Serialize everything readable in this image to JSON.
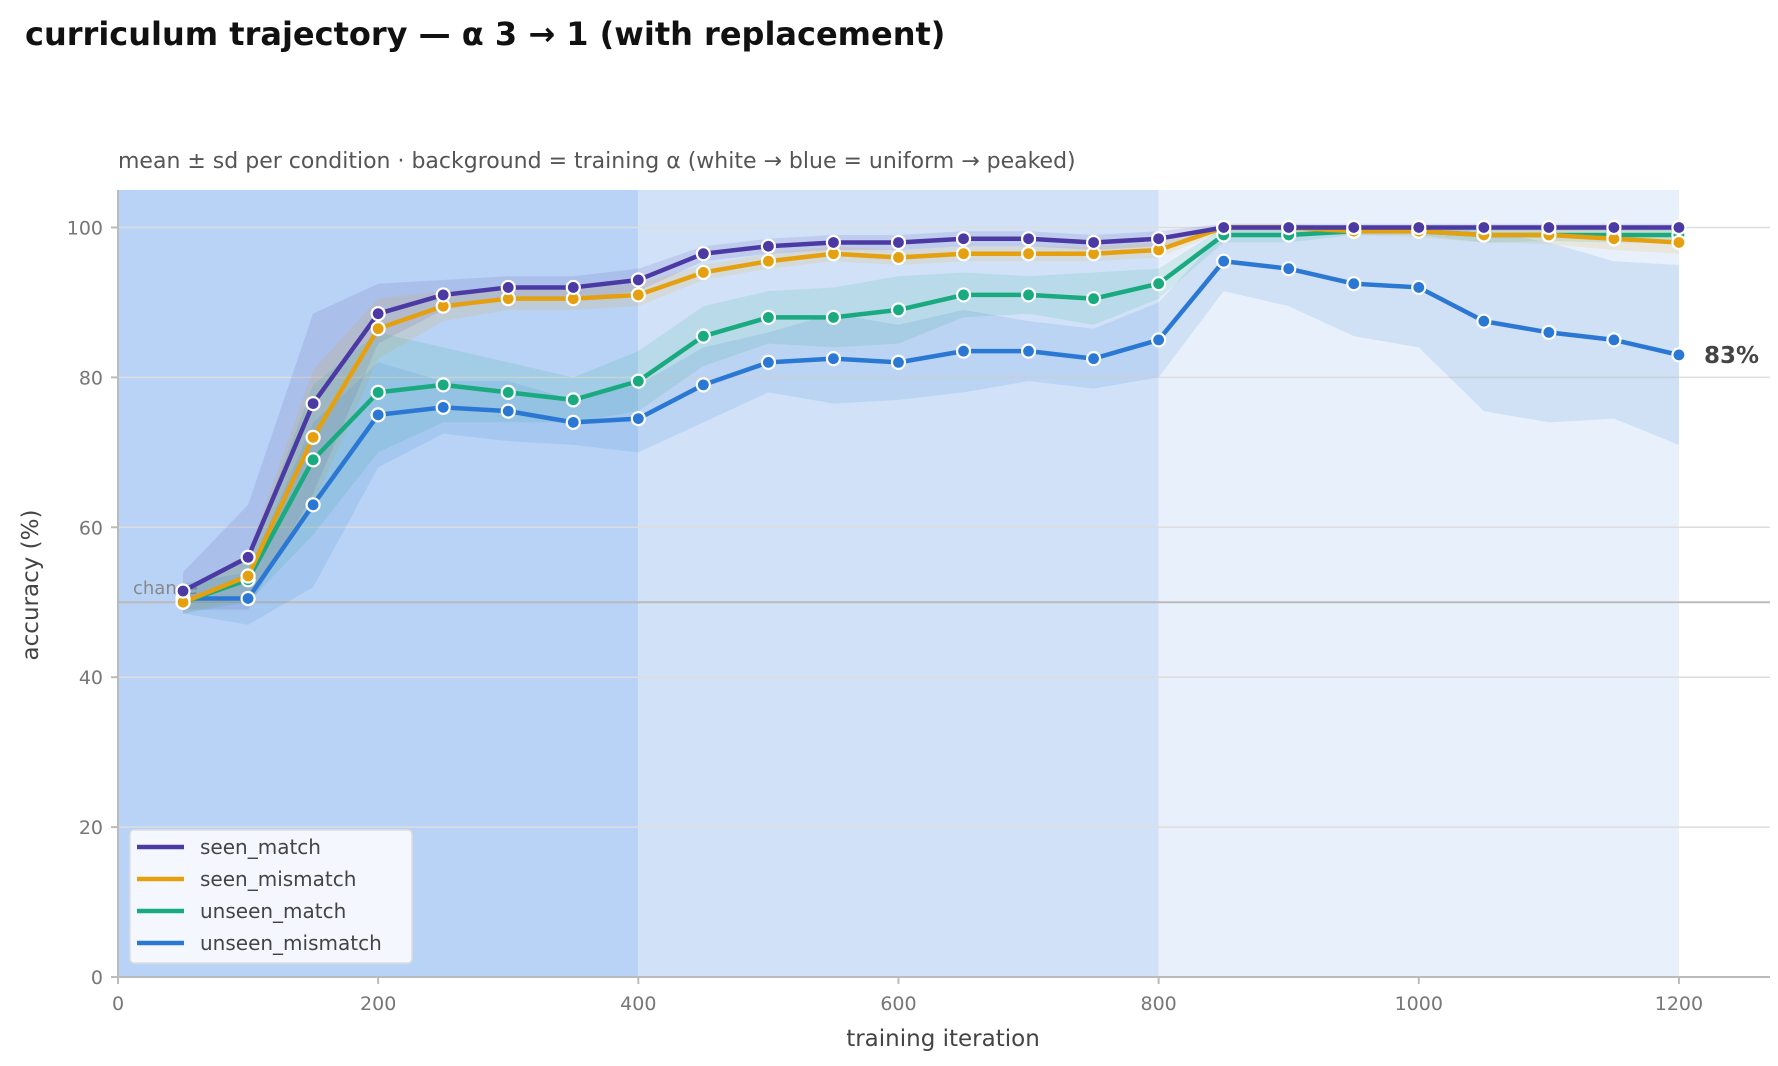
{
  "chart_data": {
    "type": "line",
    "title": "curriculum trajectory — α 3 → 1 (with replacement)",
    "subtitle": "mean ± sd per condition · background = training α (white → blue = uniform → peaked)",
    "xlabel": "training iteration",
    "ylabel": "accuracy (%)",
    "xlim": [
      0,
      1270
    ],
    "ylim": [
      0,
      105
    ],
    "xticks": [
      0,
      200,
      400,
      600,
      800,
      1000,
      1200
    ],
    "yticks": [
      0,
      20,
      40,
      60,
      80,
      100
    ],
    "grid": "horizontal",
    "legend_position": "lower-left",
    "chance_level": 50,
    "chance_label": "chance",
    "phases": [
      {
        "start": 0,
        "end": 400,
        "alpha": 3,
        "color": "#b8d3f5"
      },
      {
        "start": 400,
        "end": 800,
        "alpha": 2,
        "color": "#d1e2f8"
      },
      {
        "start": 800,
        "end": 1200,
        "alpha": 1,
        "color": "#e8f0fc"
      }
    ],
    "x": [
      50,
      100,
      150,
      200,
      250,
      300,
      350,
      400,
      450,
      500,
      550,
      600,
      650,
      700,
      750,
      800,
      850,
      900,
      950,
      1000,
      1050,
      1100,
      1150,
      1200
    ],
    "series": [
      {
        "name": "seen_match",
        "color": "#4b3aa3",
        "values": [
          51.5,
          56,
          76.5,
          88.5,
          91,
          92,
          92,
          93,
          96.5,
          97.5,
          98,
          98,
          98.5,
          98.5,
          98,
          98.5,
          100,
          100,
          100,
          100,
          100,
          100,
          100,
          100
        ],
        "sd": [
          2.5,
          7,
          12,
          4,
          2,
          1.5,
          1.5,
          1.5,
          1,
          1,
          1,
          1,
          1,
          1,
          1,
          1,
          0.5,
          0.5,
          0.5,
          0.5,
          0.5,
          0.5,
          0.5,
          0.5
        ]
      },
      {
        "name": "seen_mismatch",
        "color": "#e5a010",
        "values": [
          50,
          53.5,
          72,
          86.5,
          89.5,
          90.5,
          90.5,
          91,
          94,
          95.5,
          96.5,
          96,
          96.5,
          96.5,
          96.5,
          97,
          100,
          100,
          99.5,
          99.5,
          99,
          99,
          98.5,
          98
        ],
        "sd": [
          1.5,
          3,
          9,
          4,
          2,
          1.5,
          1.5,
          1.5,
          1,
          1,
          1,
          1,
          1,
          1,
          1,
          1,
          0.5,
          0.5,
          0.5,
          0.8,
          1,
          1.2,
          1.5,
          1.5
        ]
      },
      {
        "name": "unseen_match",
        "color": "#1aaa80",
        "values": [
          50,
          53,
          69,
          78,
          79,
          78,
          77,
          79.5,
          85.5,
          88,
          88,
          89,
          91,
          91,
          90.5,
          92.5,
          99,
          99,
          99.5,
          99.5,
          99,
          99,
          99,
          99
        ],
        "sd": [
          1.5,
          3,
          10,
          8,
          5,
          4,
          3,
          4,
          4,
          3.5,
          4,
          4.5,
          3,
          2.5,
          3.5,
          2,
          1,
          1,
          0.5,
          0.5,
          1,
          0.8,
          1,
          1
        ]
      },
      {
        "name": "unseen_mismatch",
        "color": "#2b78d4",
        "values": [
          50.5,
          50.5,
          63,
          75,
          76,
          75.5,
          74,
          74.5,
          79,
          82,
          82.5,
          82,
          83.5,
          83.5,
          82.5,
          85,
          95.5,
          94.5,
          92.5,
          92,
          87.5,
          86,
          85,
          83
        ],
        "sd": [
          2,
          3.5,
          11,
          7,
          3.5,
          4,
          3,
          4.5,
          5,
          4,
          6,
          5,
          5.5,
          4,
          4,
          5,
          4,
          5,
          7,
          8,
          12,
          12,
          10.5,
          12
        ]
      }
    ],
    "end_label": "83%"
  }
}
